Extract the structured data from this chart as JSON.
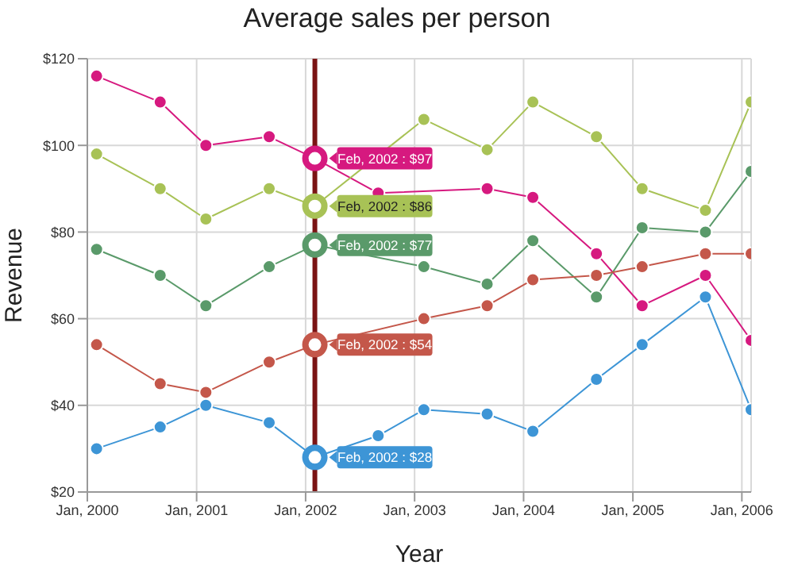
{
  "chart_data": {
    "type": "line",
    "title": "Average sales per person",
    "xlabel": "Year",
    "ylabel": "Revenue",
    "x": [
      "2000-02",
      "2000-09",
      "2001-02",
      "2001-09",
      "2002-02",
      "2002-09",
      "2003-02",
      "2003-09",
      "2004-02",
      "2004-09",
      "2005-02",
      "2005-09",
      "2006-02"
    ],
    "series": [
      {
        "color": "#d6197f",
        "values": [
          116,
          110,
          100,
          102,
          97,
          89,
          null,
          90,
          88,
          75,
          63,
          70,
          55
        ]
      },
      {
        "color": "#a8c256",
        "values": [
          98,
          90,
          83,
          90,
          86,
          null,
          106,
          99,
          110,
          102,
          90,
          85,
          110
        ]
      },
      {
        "color": "#5a9a6a",
        "values": [
          76,
          70,
          63,
          72,
          77,
          null,
          72,
          68,
          78,
          65,
          81,
          80,
          94
        ]
      },
      {
        "color": "#c4574a",
        "values": [
          54,
          45,
          43,
          50,
          54,
          null,
          60,
          63,
          69,
          70,
          72,
          75,
          75
        ]
      },
      {
        "color": "#3d95d6",
        "values": [
          30,
          35,
          40,
          36,
          28,
          33,
          39,
          38,
          34,
          46,
          54,
          65,
          39
        ]
      }
    ],
    "annotations": [
      {
        "text": "Feb, 2002 : $97",
        "x": "2002-02",
        "y": 97
      },
      {
        "text": "Feb, 2002 : $86",
        "x": "2002-02",
        "y": 86
      },
      {
        "text": "Feb, 2002 : $77",
        "x": "2002-02",
        "y": 77
      },
      {
        "text": "Feb, 2002 : $54",
        "x": "2002-02",
        "y": 54
      },
      {
        "text": "Feb, 2002 : $28",
        "x": "2002-02",
        "y": 28
      }
    ],
    "ref_lines": [
      {
        "axis": "x",
        "value": "2002-02",
        "color": "#7b1414"
      }
    ],
    "xlim": [
      "2000-01",
      "2006-02"
    ],
    "xticks": [
      {
        "value": "2000-01",
        "label": "Jan, 2000"
      },
      {
        "value": "2001-01",
        "label": "Jan, 2001"
      },
      {
        "value": "2002-01",
        "label": "Jan, 2002"
      },
      {
        "value": "2003-01",
        "label": "Jan, 2003"
      },
      {
        "value": "2004-01",
        "label": "Jan, 2004"
      },
      {
        "value": "2005-01",
        "label": "Jan, 2005"
      },
      {
        "value": "2006-01",
        "label": "Jan, 2006"
      }
    ],
    "ylim": [
      20,
      120
    ],
    "yticks": [
      {
        "value": 20,
        "label": "$20"
      },
      {
        "value": 40,
        "label": "$40"
      },
      {
        "value": 60,
        "label": "$60"
      },
      {
        "value": 80,
        "label": "$80"
      },
      {
        "value": 100,
        "label": "$100"
      },
      {
        "value": 120,
        "label": "$120"
      }
    ],
    "grid": true,
    "marker": "circle",
    "line_style": "solid"
  }
}
